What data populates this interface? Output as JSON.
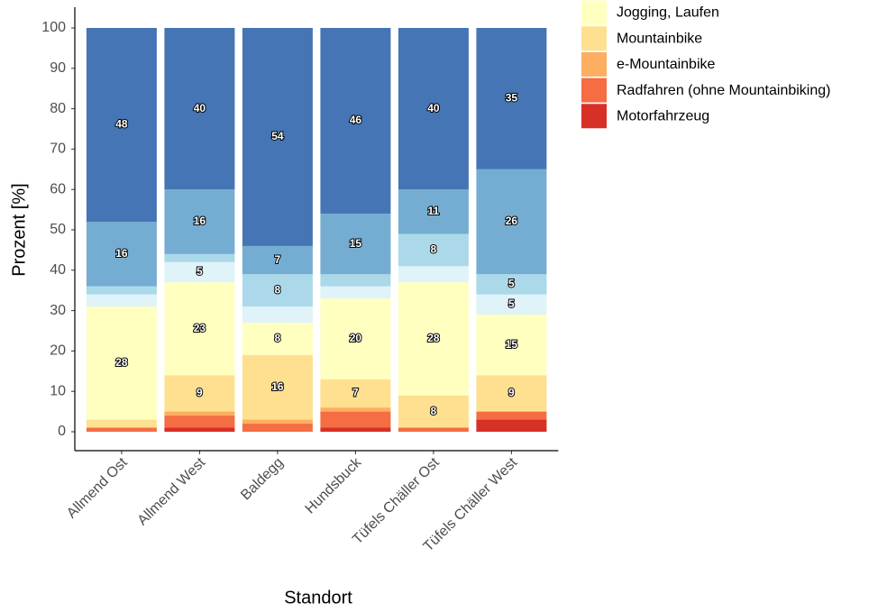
{
  "chart_data": {
    "type": "stacked_bar",
    "x_label": "Standort",
    "y_label": "Prozent [%]",
    "categories": [
      "Allmend Ost",
      "Allmend West",
      "Baldegg",
      "Hundsbuck",
      "Tüfels Chäller Ost",
      "Tüfels Chäller West"
    ],
    "series": [
      {
        "name": "Motorfahrzeug",
        "color": "#d73027",
        "values": [
          0,
          1,
          0,
          1,
          0,
          3
        ]
      },
      {
        "name": "Radfahren (ohne Mountainbiking)",
        "color": "#f46d43",
        "values": [
          1,
          3,
          2,
          4,
          1,
          2
        ]
      },
      {
        "name": "e-Mountainbike",
        "color": "#fdae61",
        "values": [
          0,
          1,
          1,
          1,
          0,
          0
        ]
      },
      {
        "name": "Mountainbike",
        "color": "#fee090",
        "values": [
          2,
          9,
          16,
          7,
          8,
          9
        ]
      },
      {
        "name": "Jogging, Laufen",
        "color": "#ffffbf",
        "values": [
          28,
          23,
          8,
          20,
          28,
          15
        ]
      },
      {
        "color": "#e0f3f8",
        "values": [
          3,
          5,
          4,
          3,
          4,
          5
        ]
      },
      {
        "color": "#abd9e9",
        "values": [
          2,
          2,
          8,
          3,
          8,
          5
        ]
      },
      {
        "color": "#74add1",
        "values": [
          16,
          16,
          7,
          15,
          11,
          26
        ]
      },
      {
        "color": "#4575b4",
        "values": [
          48,
          40,
          54,
          46,
          40,
          35
        ]
      }
    ],
    "ylim": [
      0,
      100
    ],
    "yticks": [
      0,
      10,
      20,
      30,
      40,
      50,
      60,
      70,
      80,
      90,
      100
    ],
    "grid": false
  }
}
